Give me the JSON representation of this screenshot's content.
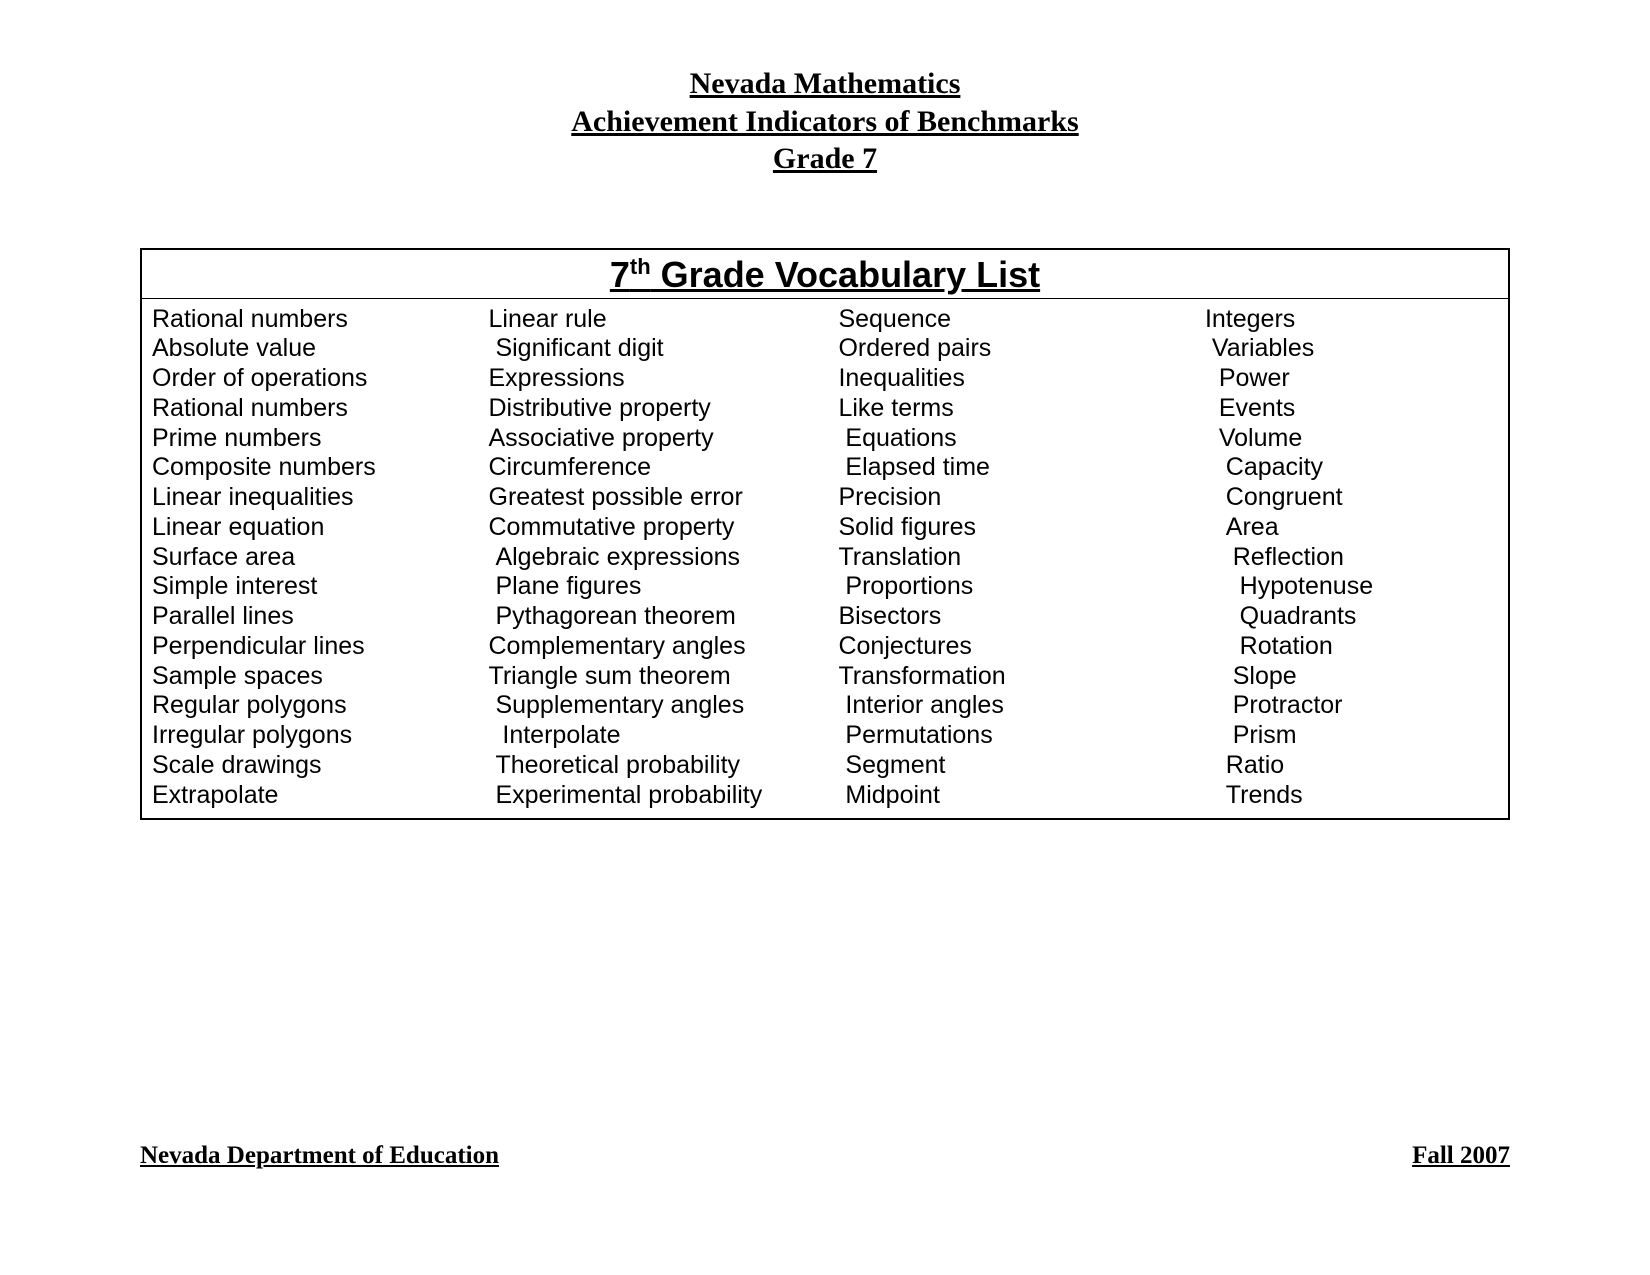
{
  "header": {
    "line1": "Nevada Mathematics",
    "line2": "Achievement Indicators of Benchmarks",
    "line3": "Grade 7"
  },
  "vocab": {
    "title_prefix": "7",
    "title_super": "th",
    "title_suffix": " Grade Vocabulary List",
    "columns": [
      [
        "Rational numbers",
        "Absolute value",
        "Order of operations",
        "Rational numbers",
        "Prime numbers",
        "Composite numbers",
        "Linear inequalities",
        "Linear equation",
        "Surface area",
        "Simple interest",
        "Parallel lines",
        "Perpendicular lines",
        "Sample spaces",
        "Regular polygons",
        "Irregular polygons",
        "Scale drawings",
        "Extrapolate"
      ],
      [
        "Linear rule",
        " Significant digit",
        "Expressions",
        "Distributive property",
        "Associative property",
        "Circumference",
        "Greatest possible error",
        "Commutative property",
        " Algebraic expressions",
        " Plane figures",
        " Pythagorean theorem",
        "Complementary angles",
        "Triangle sum theorem",
        " Supplementary angles",
        "  Interpolate",
        " Theoretical probability",
        " Experimental probability"
      ],
      [
        "Sequence",
        "Ordered pairs",
        "Inequalities",
        "Like terms",
        " Equations",
        " Elapsed time",
        "Precision",
        "Solid figures",
        "Translation",
        " Proportions",
        "Bisectors",
        "Conjectures",
        "Transformation",
        " Interior angles",
        " Permutations",
        " Segment",
        " Midpoint"
      ],
      [
        "Integers",
        " Variables",
        "  Power",
        "  Events",
        "  Volume",
        "   Capacity",
        "   Congruent",
        "   Area",
        "    Reflection",
        "     Hypotenuse",
        "     Quadrants",
        "     Rotation",
        "    Slope",
        "    Protractor",
        "    Prism",
        "   Ratio",
        "   Trends"
      ]
    ]
  },
  "footer": {
    "left": "Nevada Department of Education",
    "right": "Fall 2007"
  },
  "styles": {
    "background_color": "#ffffff",
    "text_color": "#000000",
    "border_color": "#000000",
    "header_font": "Times New Roman",
    "body_font": "Arial",
    "header_fontsize": 30,
    "vocab_title_fontsize": 36,
    "vocab_item_fontsize": 25,
    "footer_fontsize": 25
  }
}
